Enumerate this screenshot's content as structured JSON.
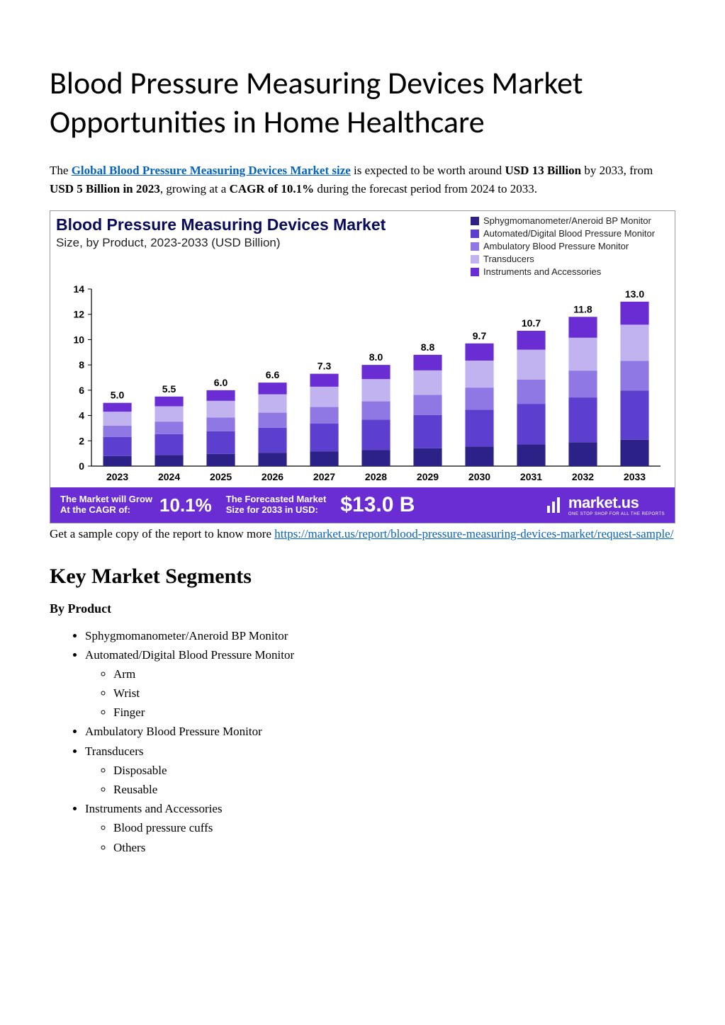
{
  "page": {
    "title": "Blood Pressure Measuring Devices Market Opportunities in Home Healthcare",
    "intro_prefix": "The ",
    "intro_link_text": "Global Blood Pressure Measuring Devices Market size",
    "intro_mid1": " is expected to be worth around ",
    "intro_bold1": "USD 13 Billion",
    "intro_mid2": " by 2033, from ",
    "intro_bold2": "USD 5 Billion in 2023",
    "intro_mid3": ", growing at a ",
    "intro_bold3": "CAGR of 10.1%",
    "intro_mid4": " during the forecast period from 2024 to 2033.",
    "caption_prefix": "Get a sample copy of the report to know more ",
    "caption_link": "https://market.us/report/blood-pressure-measuring-devices-market/request-sample/",
    "h2": "Key Market Segments",
    "h3": "By Product"
  },
  "chart": {
    "title": "Blood Pressure Measuring Devices Market",
    "subtitle": "Size, by Product, 2023-2033 (USD Billion)",
    "type": "stacked-bar",
    "categories": [
      "2023",
      "2024",
      "2025",
      "2026",
      "2027",
      "2028",
      "2029",
      "2030",
      "2031",
      "2032",
      "2033"
    ],
    "totals": [
      5.0,
      5.5,
      6.0,
      6.6,
      7.3,
      8.0,
      8.8,
      9.7,
      10.7,
      11.8,
      13.0
    ],
    "total_labels": [
      "5.0",
      "5.5",
      "6.0",
      "6.6",
      "7.3",
      "8.0",
      "8.8",
      "9.7",
      "10.7",
      "11.8",
      "13.0"
    ],
    "series": [
      {
        "name": "Sphygmomanometer/Aneroid BP Monitor",
        "color": "#2b2186",
        "frac": 0.16
      },
      {
        "name": "Automated/Digital Blood Pressure Monitor",
        "color": "#5c3fcf",
        "frac": 0.3
      },
      {
        "name": "Ambulatory Blood Pressure Monitor",
        "color": "#8f78e3",
        "frac": 0.18
      },
      {
        "name": "Transducers",
        "color": "#c0b3ef",
        "frac": 0.22
      },
      {
        "name": "Instruments and Accessories",
        "color": "#6a2dd4",
        "frac": 0.14
      }
    ],
    "ylim": [
      0,
      14
    ],
    "yticks": [
      0,
      2,
      4,
      6,
      8,
      10,
      12,
      14
    ],
    "ytick_labels": [
      "0",
      "2",
      "4",
      "6",
      "8",
      "10",
      "12",
      "14"
    ],
    "bar_width": 0.55,
    "plot": {
      "axis_fontsize": 14,
      "label_fontsize": 14,
      "bg": "#ffffff",
      "axis_color": "#000000"
    }
  },
  "banner": {
    "bg": "#6a2dd4",
    "cagr_label": "The Market will Grow\nAt the CAGR of:",
    "cagr_value": "10.1%",
    "forecast_label": "The Forecasted Market\nSize for 2033 in USD:",
    "forecast_value": "$13.0 B",
    "brand_main": "market.us",
    "brand_sub": "ONE STOP SHOP FOR ALL THE REPORTS"
  },
  "segments": {
    "items": [
      {
        "label": "Sphygmomanometer/Aneroid BP Monitor"
      },
      {
        "label": "Automated/Digital Blood Pressure Monitor",
        "children": [
          "Arm",
          "Wrist",
          "Finger"
        ]
      },
      {
        "label": "Ambulatory Blood Pressure Monitor"
      },
      {
        "label": "Transducers",
        "children": [
          "Disposable",
          "Reusable"
        ]
      },
      {
        "label": "Instruments and Accessories",
        "children": [
          "Blood pressure cuffs",
          "Others"
        ]
      }
    ]
  }
}
